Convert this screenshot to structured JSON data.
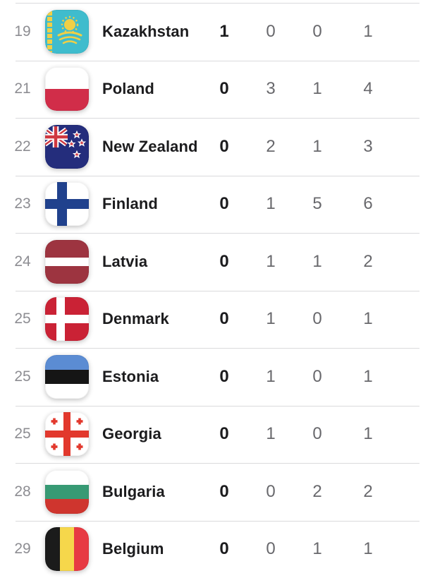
{
  "table": {
    "name": "medal-standings-table",
    "rows": [
      {
        "rank": "19",
        "country": "Kazakhstan",
        "flag": "flag-kazakhstan",
        "gold": "1",
        "silver": "0",
        "bronze": "0",
        "total": "1"
      },
      {
        "rank": "21",
        "country": "Poland",
        "flag": "flag-poland",
        "gold": "0",
        "silver": "3",
        "bronze": "1",
        "total": "4"
      },
      {
        "rank": "22",
        "country": "New Zealand",
        "flag": "flag-new-zealand",
        "gold": "0",
        "silver": "2",
        "bronze": "1",
        "total": "3"
      },
      {
        "rank": "23",
        "country": "Finland",
        "flag": "flag-finland",
        "gold": "0",
        "silver": "1",
        "bronze": "5",
        "total": "6"
      },
      {
        "rank": "24",
        "country": "Latvia",
        "flag": "flag-latvia",
        "gold": "0",
        "silver": "1",
        "bronze": "1",
        "total": "2"
      },
      {
        "rank": "25",
        "country": "Denmark",
        "flag": "flag-denmark",
        "gold": "0",
        "silver": "1",
        "bronze": "0",
        "total": "1"
      },
      {
        "rank": "25",
        "country": "Estonia",
        "flag": "flag-estonia",
        "gold": "0",
        "silver": "1",
        "bronze": "0",
        "total": "1"
      },
      {
        "rank": "25",
        "country": "Georgia",
        "flag": "flag-georgia",
        "gold": "0",
        "silver": "1",
        "bronze": "0",
        "total": "1"
      },
      {
        "rank": "28",
        "country": "Bulgaria",
        "flag": "flag-bulgaria",
        "gold": "0",
        "silver": "0",
        "bronze": "2",
        "total": "2"
      },
      {
        "rank": "29",
        "country": "Belgium",
        "flag": "flag-belgium",
        "gold": "0",
        "silver": "0",
        "bronze": "1",
        "total": "1"
      }
    ]
  },
  "colors": {
    "gold_text": "#1c1c1e",
    "secondary_text": "#68686c",
    "rank_text": "#8d8d92",
    "country_text": "#1c1c1e",
    "divider": "#dadadc",
    "background": "#ffffff"
  }
}
